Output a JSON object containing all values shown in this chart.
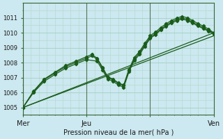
{
  "xlabel": "Pression niveau de la mer( hPa )",
  "bg_color": "#cce8f0",
  "grid_color_minor": "#b0d8c8",
  "grid_color_major": "#99ccb8",
  "line_color": "#1a5c1a",
  "text_color": "#1a1a1a",
  "ylim": [
    1004.5,
    1011.8
  ],
  "xlim": [
    0,
    72
  ],
  "yticks": [
    1005,
    1006,
    1007,
    1008,
    1009,
    1010,
    1011
  ],
  "xtick_positions": [
    0,
    24,
    48,
    72
  ],
  "xtick_labels": [
    "Mer",
    "Jeu",
    "",
    "Ven"
  ],
  "vlines": [
    0,
    24,
    48
  ],
  "series": [
    {
      "x": [
        0,
        72
      ],
      "y": [
        1005.0,
        1010.0
      ],
      "marker": false
    },
    {
      "x": [
        0,
        72
      ],
      "y": [
        1005.0,
        1009.8
      ],
      "marker": false
    },
    {
      "x": [
        0,
        4,
        8,
        12,
        16,
        20,
        24,
        26,
        28,
        30,
        32,
        34,
        36,
        38,
        40,
        42,
        44,
        46,
        48,
        50,
        52,
        54,
        56,
        58,
        60,
        62,
        64,
        66,
        68,
        70,
        72
      ],
      "y": [
        1005.0,
        1006.1,
        1006.9,
        1007.35,
        1007.8,
        1008.1,
        1008.4,
        1008.55,
        1008.3,
        1007.7,
        1007.05,
        1006.9,
        1006.65,
        1006.5,
        1007.55,
        1008.35,
        1008.75,
        1009.3,
        1009.8,
        1010.05,
        1010.35,
        1010.6,
        1010.82,
        1010.97,
        1011.1,
        1011.0,
        1010.82,
        1010.62,
        1010.45,
        1010.25,
        1010.0
      ],
      "marker": true
    },
    {
      "x": [
        0,
        4,
        8,
        12,
        16,
        20,
        24,
        26,
        28,
        30,
        32,
        34,
        36,
        38,
        40,
        42,
        44,
        46,
        48,
        50,
        52,
        54,
        56,
        58,
        60,
        62,
        64,
        66,
        68,
        70,
        72
      ],
      "y": [
        1005.0,
        1006.05,
        1006.85,
        1007.3,
        1007.72,
        1008.02,
        1008.3,
        1008.45,
        1008.25,
        1007.62,
        1007.0,
        1006.85,
        1006.6,
        1006.45,
        1007.5,
        1008.25,
        1008.65,
        1009.2,
        1009.7,
        1009.95,
        1010.25,
        1010.5,
        1010.72,
        1010.88,
        1011.0,
        1010.9,
        1010.72,
        1010.52,
        1010.35,
        1010.15,
        1009.98
      ],
      "marker": true
    },
    {
      "x": [
        0,
        4,
        8,
        12,
        16,
        20,
        24,
        28,
        30,
        32,
        34,
        36,
        38,
        40,
        42,
        44,
        46,
        48,
        50,
        52,
        54,
        56,
        58,
        60,
        62,
        64,
        66,
        68,
        70,
        72
      ],
      "y": [
        1005.0,
        1006.0,
        1006.75,
        1007.2,
        1007.62,
        1007.92,
        1008.2,
        1008.1,
        1007.5,
        1006.9,
        1006.75,
        1006.5,
        1006.35,
        1007.38,
        1008.15,
        1008.55,
        1009.1,
        1009.62,
        1009.88,
        1010.18,
        1010.42,
        1010.65,
        1010.8,
        1010.92,
        1010.82,
        1010.65,
        1010.45,
        1010.28,
        1010.1,
        1009.92
      ],
      "marker": true
    }
  ],
  "marker": "D",
  "markersize": 2.2,
  "linewidth": 0.9
}
